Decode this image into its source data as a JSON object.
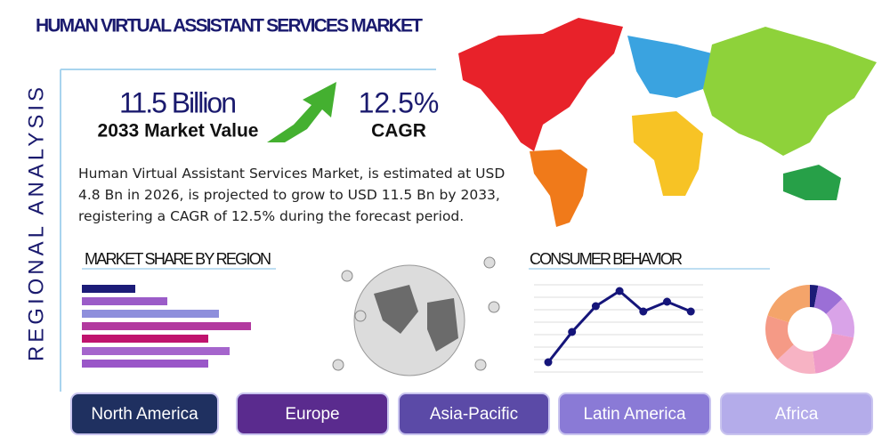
{
  "header": {
    "title": "HUMAN VIRTUAL ASSISTANT SERVICES MARKET",
    "side_label": "REGIONAL ANALYSIS"
  },
  "stats": [
    {
      "value": "11.5 Billion",
      "label": "2033 Market Value"
    },
    {
      "value": "12.5%",
      "label": "CAGR"
    }
  ],
  "description": "Human Virtual Assistant Services Market, is estimated at USD 4.8 Bn in 2026, is projected to grow to USD 11.5 Bn by 2033, registering a CAGR of 12.5% during the forecast period.",
  "market_share": {
    "title": "MARKET SHARE BY REGION",
    "values": [
      30,
      48,
      77,
      95,
      71,
      83,
      71
    ],
    "colors": [
      "#1c1c78",
      "#9b5cc8",
      "#8e8fdc",
      "#b2399f",
      "#c0136e",
      "#a565cc",
      "#9a57c8"
    ]
  },
  "consumer_behavior": {
    "title": "CONSUMER BEHAVIOR",
    "values": [
      11,
      45,
      74,
      91,
      68,
      79,
      68
    ],
    "color": "#15157a"
  },
  "donut": {
    "values": [
      3,
      10,
      15,
      20,
      15,
      17,
      20
    ],
    "colors": [
      "#1c1c78",
      "#9b6fd6",
      "#d9a3e8",
      "#ee9ac8",
      "#f7b3c4",
      "#f59a86",
      "#f4a46a"
    ]
  },
  "regions": [
    {
      "label": "North America",
      "color": "#1f3060"
    },
    {
      "label": "Europe",
      "color": "#5a2b8e"
    },
    {
      "label": "Asia-Pacific",
      "color": "#5b4aa7"
    },
    {
      "label": "Latin America",
      "color": "#8a7ad6"
    },
    {
      "label": "Africa",
      "color": "#b4acea"
    }
  ]
}
